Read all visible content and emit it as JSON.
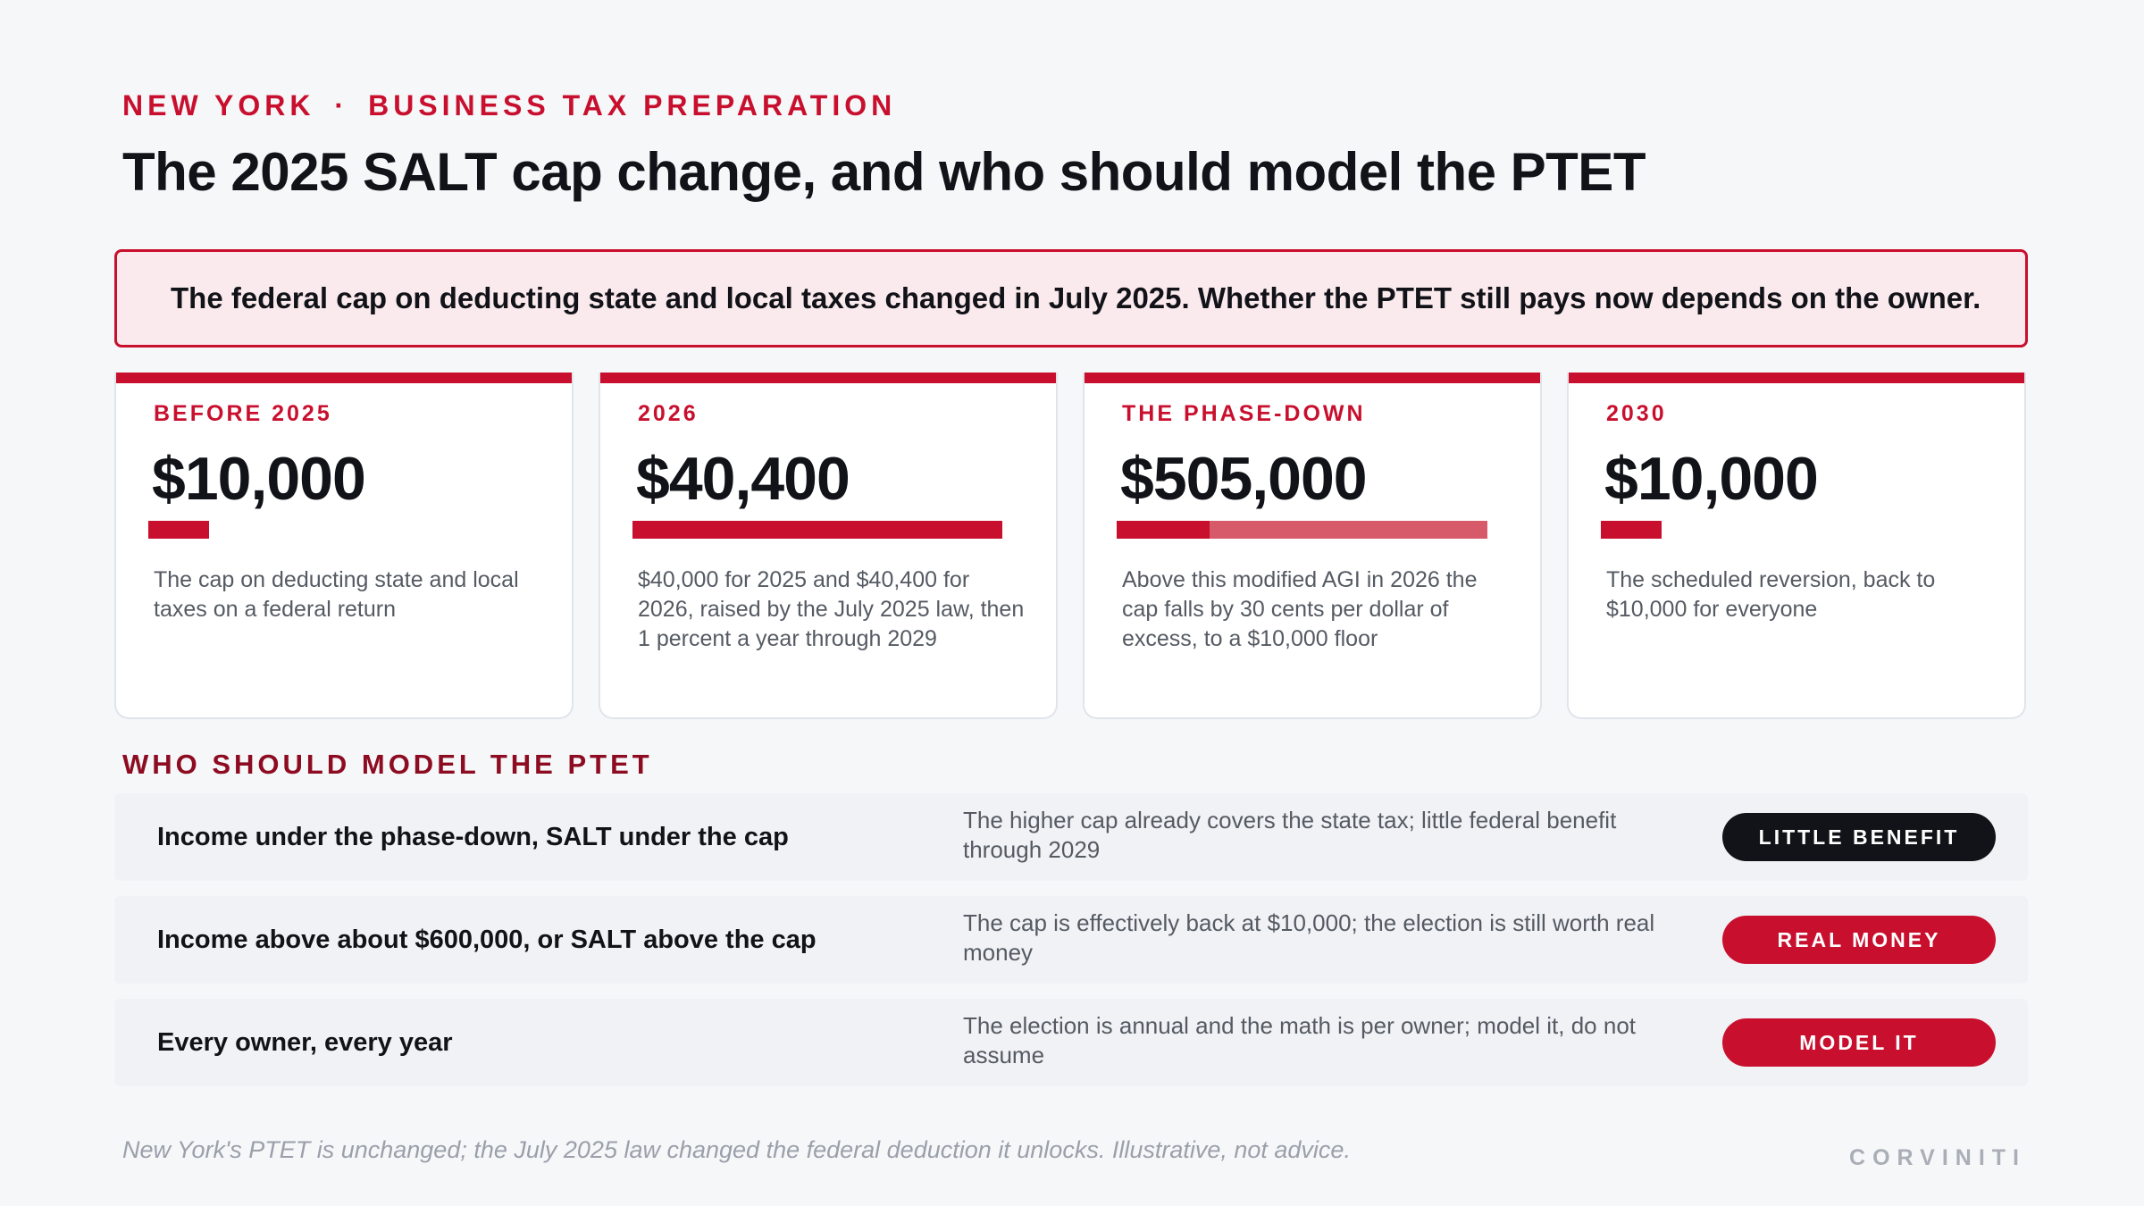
{
  "header": {
    "eyebrow_left": "NEW YORK",
    "eyebrow_sep": "·",
    "eyebrow_right": "BUSINESS TAX PREPARATION",
    "title": "The 2025 SALT cap change, and who should model the PTET"
  },
  "callout": {
    "text": "The federal cap on deducting state and local taxes changed in July 2025. Whether the PTET still pays now depends on the owner."
  },
  "colors": {
    "accent": "#c8102e",
    "accent_light": "#d65a69",
    "dark": "#111318",
    "callout_bg": "#fbeaed"
  },
  "cards": [
    {
      "label": "BEFORE 2025",
      "value": "$10,000",
      "bar_fraction": 0.165,
      "desc": "The cap on deducting state and local taxes on a federal return"
    },
    {
      "label": "2026",
      "value": "$40,400",
      "bar_fraction": 1.0,
      "desc": "$40,000 for 2025 and $40,400 for 2026, raised by the July 2025 law, then 1 percent a year through 2029"
    },
    {
      "label": "THE PHASE-DOWN",
      "value": "$505,000",
      "bar_fraction": 0.25,
      "bar_remainder": 0.75,
      "desc": "Above this modified AGI in 2026 the cap falls by 30 cents per dollar of excess, to a $10,000 floor"
    },
    {
      "label": "2030",
      "value": "$10,000",
      "bar_fraction": 0.165,
      "desc": "The scheduled reversion, back to $10,000 for everyone"
    }
  ],
  "section": {
    "heading": "WHO SHOULD MODEL THE PTET"
  },
  "rows": [
    {
      "who": "Income under the phase-down, SALT under the cap",
      "why": "The higher cap already covers the state tax; little federal benefit through 2029",
      "verdict": "LITTLE BENEFIT",
      "style": "dark"
    },
    {
      "who": "Income above about $600,000, or SALT above the cap",
      "why": "The cap is effectively back at $10,000; the election is still worth real money",
      "verdict": "REAL MONEY",
      "style": "red"
    },
    {
      "who": "Every owner, every year",
      "why": "The election is annual and the math is per owner; model it, do not assume",
      "verdict": "MODEL IT",
      "style": "red"
    }
  ],
  "footer": {
    "note": "New York's PTET is unchanged; the July 2025 law changed the federal deduction it unlocks. Illustrative, not advice.",
    "brand": "CORVINITI"
  }
}
